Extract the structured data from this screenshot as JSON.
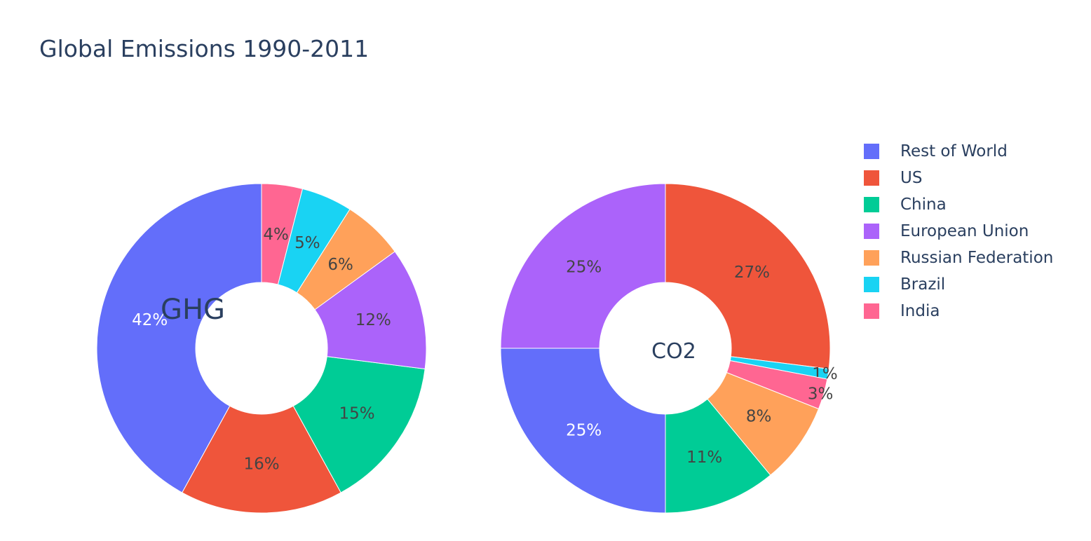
{
  "chart_data": {
    "type": "pie",
    "title": "Global Emissions 1990-2011",
    "hole": 0.4,
    "labels": [
      "Rest of World",
      "US",
      "China",
      "European Union",
      "Russian Federation",
      "Brazil",
      "India"
    ],
    "colors": {
      "Rest of World": "#636efa",
      "US": "#ef553b",
      "China": "#00cc96",
      "European Union": "#ab63fa",
      "Russian Federation": "#ffa15a",
      "Brazil": "#19d3f3",
      "India": "#ff6692"
    },
    "legend_position": "right",
    "pies": [
      {
        "name": "GHG",
        "hole_text": "GHG",
        "direction": "counterclockwise",
        "slices": [
          {
            "label": "Rest of World",
            "value": 42,
            "text": "42%"
          },
          {
            "label": "US",
            "value": 16,
            "text": "16%"
          },
          {
            "label": "China",
            "value": 15,
            "text": "15%"
          },
          {
            "label": "European Union",
            "value": 12,
            "text": "12%"
          },
          {
            "label": "Russian Federation",
            "value": 6,
            "text": "6%"
          },
          {
            "label": "Brazil",
            "value": 5,
            "text": "5%"
          },
          {
            "label": "India",
            "value": 4,
            "text": "4%"
          }
        ]
      },
      {
        "name": "CO2",
        "hole_text": "CO2",
        "direction": "clockwise",
        "slices": [
          {
            "label": "US",
            "value": 27,
            "text": "27%"
          },
          {
            "label": "Brazil",
            "value": 1,
            "text": "1%"
          },
          {
            "label": "India",
            "value": 3,
            "text": "3%"
          },
          {
            "label": "Russian Federation",
            "value": 8,
            "text": "8%"
          },
          {
            "label": "China",
            "value": 11,
            "text": "11%"
          },
          {
            "label": "Rest of World",
            "value": 25,
            "text": "25%"
          },
          {
            "label": "European Union",
            "value": 25,
            "text": "25%"
          }
        ]
      }
    ]
  }
}
